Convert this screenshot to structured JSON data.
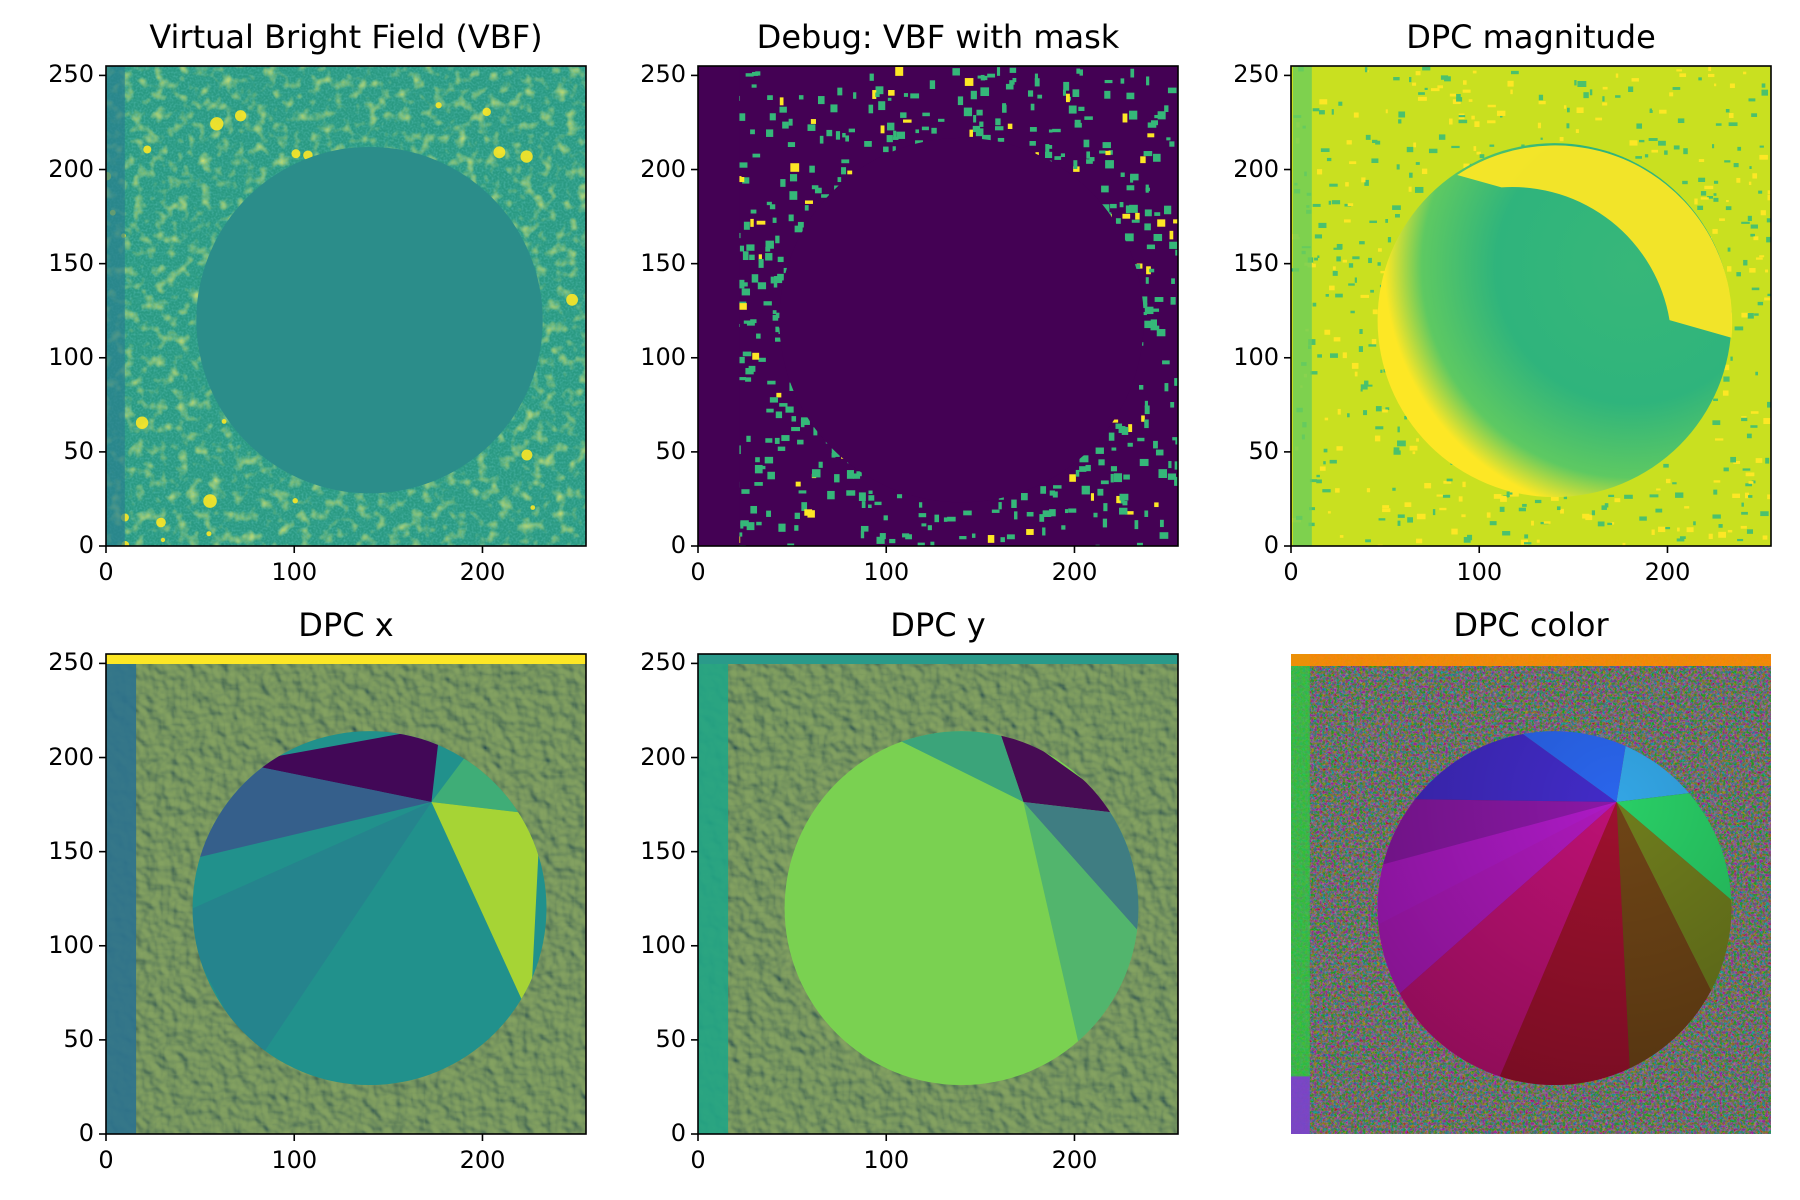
{
  "colors": {
    "viridis_dark": "#440154",
    "viridis_teal": "#21918c",
    "viridis_green": "#5ec962",
    "viridis_yellow": "#fde725"
  },
  "chart_data": [
    {
      "type": "heatmap",
      "title": "Virtual Bright Field (VBF)",
      "colormap": "viridis",
      "xlim": [
        0,
        255
      ],
      "ylim": [
        0,
        255
      ],
      "xticks": [
        "0",
        "100",
        "200"
      ],
      "yticks": [
        "0",
        "50",
        "100",
        "150",
        "200",
        "250"
      ],
      "style": "vbf",
      "features": {
        "disk_center": [
          140,
          120
        ],
        "disk_radius": 92
      }
    },
    {
      "type": "heatmap",
      "title": "Debug: VBF with mask",
      "colormap": "viridis",
      "xlim": [
        0,
        255
      ],
      "ylim": [
        0,
        255
      ],
      "xticks": [
        "0",
        "100",
        "200"
      ],
      "yticks": [
        "0",
        "50",
        "100",
        "150",
        "200",
        "250"
      ],
      "style": "mask",
      "features": {
        "disk_center": [
          140,
          120
        ],
        "disk_radius": 94
      }
    },
    {
      "type": "heatmap",
      "title": "DPC magnitude",
      "colormap": "viridis",
      "xlim": [
        0,
        255
      ],
      "ylim": [
        0,
        255
      ],
      "xticks": [
        "0",
        "100",
        "200"
      ],
      "yticks": [
        "0",
        "50",
        "100",
        "150",
        "200",
        "250"
      ],
      "style": "magnitude",
      "features": {
        "disk_center": [
          140,
          120
        ],
        "disk_radius": 94
      }
    },
    {
      "type": "heatmap",
      "title": "DPC x",
      "colormap": "viridis",
      "xlim": [
        0,
        255
      ],
      "ylim": [
        0,
        255
      ],
      "xticks": [
        "0",
        "100",
        "200"
      ],
      "yticks": [
        "0",
        "50",
        "100",
        "150",
        "200",
        "250"
      ],
      "style": "dpcx",
      "features": {
        "disk_center": [
          140,
          120
        ],
        "disk_radius": 94
      }
    },
    {
      "type": "heatmap",
      "title": "DPC y",
      "colormap": "viridis",
      "xlim": [
        0,
        255
      ],
      "ylim": [
        0,
        255
      ],
      "xticks": [
        "0",
        "100",
        "200"
      ],
      "yticks": [
        "0",
        "50",
        "100",
        "150",
        "200",
        "250"
      ],
      "style": "dpcy",
      "features": {
        "disk_center": [
          140,
          120
        ],
        "disk_radius": 94
      }
    },
    {
      "type": "heatmap",
      "title": "DPC color",
      "colormap": "hsv",
      "xlim": [
        0,
        255
      ],
      "ylim": [
        0,
        255
      ],
      "xticks": [],
      "yticks": [],
      "style": "color",
      "features": {
        "disk_center": [
          140,
          120
        ],
        "disk_radius": 94
      }
    }
  ]
}
